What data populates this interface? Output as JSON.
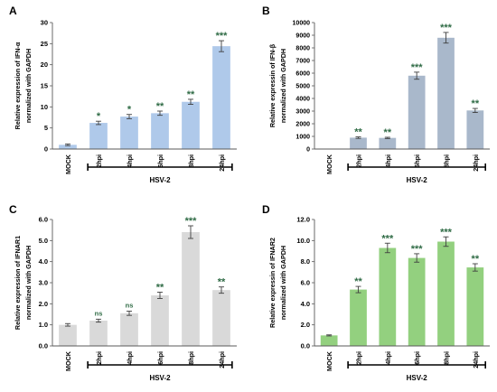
{
  "chart_data": [
    {
      "panel": "A",
      "type": "bar",
      "ylabel": [
        "Relative expression of IFN-α",
        "normalized with GAPDH"
      ],
      "categories": [
        "MOCK",
        "2hpi",
        "4hpi",
        "6hpi",
        "8hpi",
        "24hpi"
      ],
      "values": [
        1.0,
        6.2,
        7.7,
        8.5,
        11.2,
        24.4
      ],
      "errors": [
        0.2,
        0.4,
        0.5,
        0.5,
        0.6,
        1.3
      ],
      "significance": [
        "",
        "*",
        "*",
        "**",
        "**",
        "***"
      ],
      "ylim": [
        0,
        30
      ],
      "yticks": [
        "0",
        "5",
        "10",
        "15",
        "20",
        "25",
        "30"
      ],
      "group_label": "HSV-2",
      "color": "#afc9ea",
      "star_color": "#2f6b45"
    },
    {
      "panel": "B",
      "type": "bar",
      "ylabel": [
        "Relative expressin of IFN-β",
        "normalized with GAPDH"
      ],
      "categories": [
        "MOCK",
        "2hpi",
        "4hpi",
        "6hpi",
        "8hpi",
        "24hpi"
      ],
      "values": [
        0,
        900,
        880,
        5800,
        8800,
        3050
      ],
      "errors": [
        0,
        60,
        50,
        280,
        420,
        160
      ],
      "significance": [
        "",
        "**",
        "**",
        "***",
        "***",
        "**"
      ],
      "ylim": [
        0,
        10000
      ],
      "yticks": [
        "0",
        "1000",
        "2000",
        "3000",
        "4000",
        "5000",
        "6000",
        "7000",
        "8000",
        "9000",
        "10000"
      ],
      "group_label": "HSV-2",
      "color": "#a9b8cb",
      "star_color": "#2f6b45"
    },
    {
      "panel": "C",
      "type": "bar",
      "ylabel": [
        "Relative expression of IFNAR1",
        "normalized with GAPDH"
      ],
      "categories": [
        "MOCK",
        "2hpi",
        "4hpi",
        "6hpi",
        "8hpi",
        "24hpi"
      ],
      "values": [
        1.0,
        1.2,
        1.55,
        2.4,
        5.4,
        2.65
      ],
      "errors": [
        0.06,
        0.07,
        0.1,
        0.15,
        0.3,
        0.15
      ],
      "significance": [
        "",
        "ns",
        "ns",
        "**",
        "***",
        "**"
      ],
      "ylim": [
        0,
        6
      ],
      "yticks": [
        "0.0",
        "1.0",
        "2.0",
        "3.0",
        "4.0",
        "5.0",
        "6.0"
      ],
      "group_label": "HSV-2",
      "color": "#d9d9d9",
      "star_color": "#2f6b45"
    },
    {
      "panel": "D",
      "type": "bar",
      "ylabel": [
        "Relative expressin of IFNAR2",
        "normalized with GAPDH"
      ],
      "categories": [
        "MOCK",
        "2hpi",
        "4hpi",
        "6hpi",
        "8hpi",
        "24hpi"
      ],
      "values": [
        1.0,
        5.35,
        9.3,
        8.35,
        9.9,
        7.45
      ],
      "errors": [
        0.05,
        0.3,
        0.45,
        0.4,
        0.45,
        0.35
      ],
      "significance": [
        "",
        "**",
        "***",
        "***",
        "***",
        "**"
      ],
      "ylim": [
        0,
        12
      ],
      "yticks": [
        "0.0",
        "2.0",
        "4.0",
        "6.0",
        "8.0",
        "10.0",
        "12.0"
      ],
      "group_label": "HSV-2",
      "color": "#93d07f",
      "star_color": "#2f6b45"
    }
  ]
}
